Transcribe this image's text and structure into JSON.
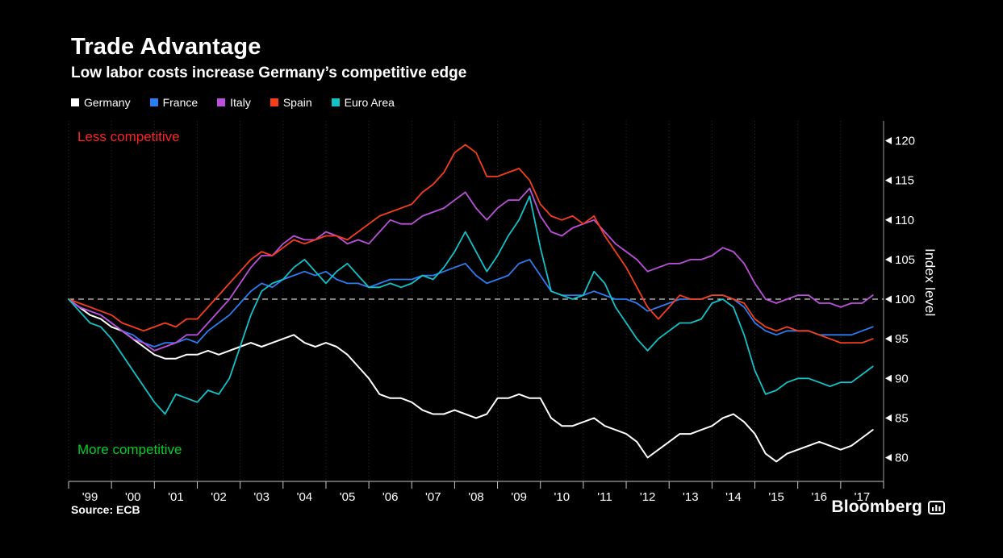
{
  "title": "Trade Advantage",
  "subtitle": "Low labor costs increase Germany’s competitive edge",
  "legend": [
    {
      "label": "Germany",
      "color": "#ffffff"
    },
    {
      "label": "France",
      "color": "#2d7cf0"
    },
    {
      "label": "Italy",
      "color": "#bc50dc"
    },
    {
      "label": "Spain",
      "color": "#f63e1c"
    },
    {
      "label": "Euro Area",
      "color": "#12c2c9"
    }
  ],
  "annotations": {
    "less": "Less competitive",
    "less_color": "#ff2121",
    "more": "More competitive",
    "more_color": "#00d021"
  },
  "y_axis_label": "Index level",
  "source": "Source: ECB",
  "brand": "Bloomberg",
  "chart_data": {
    "type": "line",
    "title": "Trade Advantage",
    "subtitle": "Low labor costs increase Germany’s competitive edge",
    "xlabel": "",
    "ylabel": "Index level",
    "ylim": [
      77,
      122.5
    ],
    "y_ticks": [
      80,
      85,
      90,
      95,
      100,
      105,
      110,
      115,
      120
    ],
    "baseline": 100,
    "legend_position": "top-left",
    "grid": "vertical-dotted",
    "x_unit": "year (quarterly)",
    "x_tick_labels": [
      "'99",
      "'00",
      "'01",
      "'02",
      "'03",
      "'04",
      "'05",
      "'06",
      "'07",
      "'08",
      "'09",
      "'10",
      "'11",
      "'12",
      "'13",
      "'14",
      "'15",
      "'16",
      "'17"
    ],
    "x": [
      1999,
      1999.25,
      1999.5,
      1999.75,
      2000,
      2000.25,
      2000.5,
      2000.75,
      2001,
      2001.25,
      2001.5,
      2001.75,
      2002,
      2002.25,
      2002.5,
      2002.75,
      2003,
      2003.25,
      2003.5,
      2003.75,
      2004,
      2004.25,
      2004.5,
      2004.75,
      2005,
      2005.25,
      2005.5,
      2005.75,
      2006,
      2006.25,
      2006.5,
      2006.75,
      2007,
      2007.25,
      2007.5,
      2007.75,
      2008,
      2008.25,
      2008.5,
      2008.75,
      2009,
      2009.25,
      2009.5,
      2009.75,
      2010,
      2010.25,
      2010.5,
      2010.75,
      2011,
      2011.25,
      2011.5,
      2011.75,
      2012,
      2012.25,
      2012.5,
      2012.75,
      2013,
      2013.25,
      2013.5,
      2013.75,
      2014,
      2014.25,
      2014.5,
      2014.75,
      2015,
      2015.25,
      2015.5,
      2015.75,
      2016,
      2016.25,
      2016.5,
      2016.75,
      2017,
      2017.25,
      2017.5,
      2017.75
    ],
    "series": [
      {
        "name": "Germany",
        "color": "#ffffff",
        "values": [
          100,
          99,
          98,
          97.5,
          96.5,
          96,
          95,
          94,
          93,
          92.5,
          92.5,
          93,
          93,
          93.5,
          93,
          93.5,
          94,
          94.5,
          94,
          94.5,
          95,
          95.5,
          94.5,
          94,
          94.5,
          94,
          93,
          91.5,
          90,
          88,
          87.5,
          87.5,
          87,
          86,
          85.5,
          85.5,
          86,
          85.5,
          85,
          85.5,
          87.5,
          87.5,
          88,
          87.5,
          87.5,
          85,
          84,
          84,
          84.5,
          85,
          84,
          83.5,
          83,
          82,
          80,
          81,
          82,
          83,
          83,
          83.5,
          84,
          85,
          85.5,
          84.5,
          83,
          80.5,
          79.5,
          80.5,
          81,
          81.5,
          82,
          81.5,
          81,
          81.5,
          82.5,
          83.5
        ]
      },
      {
        "name": "France",
        "color": "#2d7cf0",
        "values": [
          100,
          99,
          98.5,
          98,
          97,
          96,
          95.5,
          94.5,
          94,
          94.5,
          94.5,
          95,
          94.5,
          96,
          97,
          98,
          99.5,
          101,
          102,
          101.5,
          102.5,
          103,
          103.5,
          103,
          103.5,
          102.5,
          102,
          102,
          101.5,
          102,
          102.5,
          102.5,
          102.5,
          103,
          103,
          103.5,
          104,
          104.5,
          103,
          102,
          102.5,
          103,
          104.5,
          105,
          103,
          101,
          100.5,
          100.5,
          100.5,
          101,
          100.5,
          100,
          100,
          99.5,
          98.5,
          99,
          99.5,
          100,
          100,
          100,
          100.5,
          100.5,
          100,
          99,
          97,
          96,
          95.5,
          96,
          96,
          96,
          95.5,
          95.5,
          95.5,
          95.5,
          96,
          96.5
        ]
      },
      {
        "name": "Italy",
        "color": "#bc50dc",
        "values": [
          100,
          99,
          98.5,
          98,
          97,
          96,
          95,
          94.5,
          93.5,
          94,
          94.5,
          95.5,
          95.5,
          97,
          98.5,
          100,
          102,
          104,
          105.5,
          105.5,
          107,
          108,
          107.5,
          107.5,
          108.5,
          108,
          107,
          107.5,
          107,
          108.5,
          110,
          109.5,
          109.5,
          110.5,
          111,
          111.5,
          112.5,
          113.5,
          111.5,
          110,
          111.5,
          112.5,
          112.5,
          114,
          110.5,
          108.5,
          108,
          109,
          109.5,
          110,
          108.5,
          107,
          106,
          105,
          103.5,
          104,
          104.5,
          104.5,
          105,
          105,
          105.5,
          106.5,
          106,
          104.5,
          102,
          100,
          99.5,
          100,
          100.5,
          100.5,
          99.5,
          99.5,
          99,
          99.5,
          99.5,
          100.5
        ]
      },
      {
        "name": "Spain",
        "color": "#f63e1c",
        "values": [
          100,
          99.5,
          99,
          98.5,
          98,
          97,
          96.5,
          96,
          96.5,
          97,
          96.5,
          97.5,
          97.5,
          99,
          100.5,
          102,
          103.5,
          105,
          106,
          105.5,
          106.5,
          107.5,
          107,
          107.5,
          108,
          108,
          107.5,
          108.5,
          109.5,
          110.5,
          111,
          111.5,
          112,
          113.5,
          114.5,
          116,
          118.5,
          119.5,
          118.5,
          115.5,
          115.5,
          116,
          116.5,
          115,
          112,
          110.5,
          110,
          110.5,
          109.5,
          110.5,
          108,
          106,
          104,
          101.5,
          99,
          97.5,
          99,
          100.5,
          100,
          100,
          100.5,
          100.5,
          100,
          99.5,
          97.5,
          96.5,
          96,
          96.5,
          96,
          96,
          95.5,
          95,
          94.5,
          94.5,
          94.5,
          95
        ]
      },
      {
        "name": "Euro Area",
        "color": "#12c2c9",
        "values": [
          100,
          98.5,
          97,
          96.5,
          95,
          93,
          91,
          89,
          87,
          85.5,
          88,
          87.5,
          87,
          88.5,
          88,
          90,
          94,
          98,
          101,
          102,
          102.5,
          104,
          105,
          103.5,
          102,
          103.5,
          104.5,
          103,
          101.5,
          101.5,
          102,
          101.5,
          102,
          103,
          102.5,
          104,
          106,
          108.5,
          106,
          103.5,
          105.5,
          108,
          110,
          113,
          106.5,
          101,
          100.5,
          100,
          100.5,
          103.5,
          102,
          99,
          97,
          95,
          93.5,
          95,
          96,
          97,
          97,
          97.5,
          99.5,
          100,
          99,
          95.5,
          91,
          88,
          88.5,
          89.5,
          90,
          90,
          89.5,
          89,
          89.5,
          89.5,
          90.5,
          91.5
        ]
      }
    ]
  }
}
